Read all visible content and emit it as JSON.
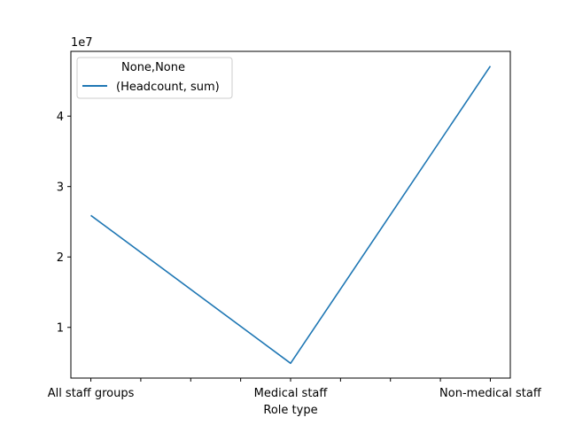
{
  "chart_data": {
    "type": "line",
    "categories": [
      "All staff groups",
      "Medical staff",
      "Non-medical staff"
    ],
    "series": [
      {
        "name": "(Headcount, sum)",
        "values": [
          25900000,
          4900000,
          47100000
        ]
      }
    ],
    "title": "",
    "xlabel": "Role type",
    "ylabel": "",
    "y_offset_label": "1e7",
    "legend_title": "None,None",
    "legend_placement": "upper-left",
    "grid": false,
    "xlim": [
      -0.1,
      2.1
    ],
    "ylim": [
      2800000,
      49200000
    ],
    "yticks": [
      10000000,
      20000000,
      30000000,
      40000000
    ],
    "ytick_labels": [
      "1",
      "2",
      "3",
      "4"
    ],
    "xtick_positions": [
      0,
      0.25,
      0.5,
      0.75,
      1,
      1.25,
      1.5,
      1.75,
      2
    ],
    "line_color": "#1f77b4"
  }
}
